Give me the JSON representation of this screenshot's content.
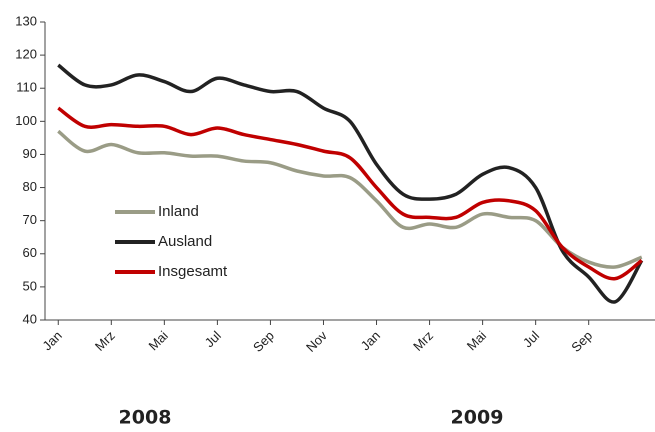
{
  "chart_data": {
    "type": "line",
    "categories": [
      "Jan",
      null,
      "Mrz",
      null,
      "Mai",
      null,
      "Jul",
      null,
      "Sep",
      null,
      "Nov",
      null,
      "Jan",
      null,
      "Mrz",
      null,
      "Mai",
      null,
      "Jul",
      null,
      "Sep",
      null,
      null
    ],
    "year_labels": [
      "2008",
      "2009"
    ],
    "series": [
      {
        "name": "Inland",
        "color": "#9a9c86",
        "values": [
          97,
          91,
          93,
          90.5,
          90.5,
          89.5,
          89.5,
          88,
          87.5,
          85,
          83.5,
          83,
          76,
          68,
          69,
          68,
          72,
          71,
          70,
          62,
          57.5,
          56,
          59
        ]
      },
      {
        "name": "Ausland",
        "color": "#222222",
        "values": [
          117,
          111,
          111,
          114,
          112,
          109,
          113,
          111,
          109,
          109,
          104,
          100,
          87,
          78,
          76.5,
          78,
          84,
          86,
          80,
          61,
          53,
          45.5,
          58
        ]
      },
      {
        "name": "Insgesamt",
        "color": "#c00000",
        "values": [
          104,
          98.5,
          99,
          98.5,
          98.5,
          96,
          98,
          96,
          94.5,
          93,
          91,
          89,
          80,
          72,
          71,
          71,
          75.5,
          76,
          73,
          62,
          56,
          52.5,
          58
        ]
      }
    ],
    "ylim": [
      40,
      130
    ],
    "yticks": [
      40,
      50,
      60,
      70,
      80,
      90,
      100,
      110,
      120,
      130
    ],
    "grid": false
  }
}
